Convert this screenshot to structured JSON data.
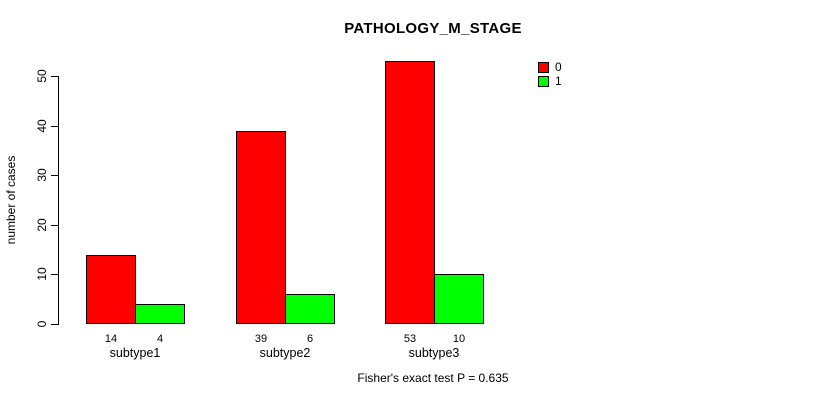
{
  "chart_data": {
    "type": "bar",
    "title": "PATHOLOGY_M_STAGE",
    "ylabel": "number of cases",
    "xlabel": "",
    "categories": [
      "subtype1",
      "subtype2",
      "subtype3"
    ],
    "series": [
      {
        "name": "0",
        "color": "#FF0000",
        "values": [
          14,
          39,
          53
        ]
      },
      {
        "name": "1",
        "color": "#00FF00",
        "values": [
          4,
          6,
          10
        ]
      }
    ],
    "bar_value_labels": [
      [
        "14",
        "39",
        "53"
      ],
      [
        "4",
        "6",
        "10"
      ]
    ],
    "yticks": [
      0,
      10,
      20,
      30,
      40,
      50
    ],
    "ylim": [
      0,
      50
    ],
    "grid": false,
    "legend_position": "top-right",
    "footnote": "Fisher's exact test P = 0.635"
  }
}
